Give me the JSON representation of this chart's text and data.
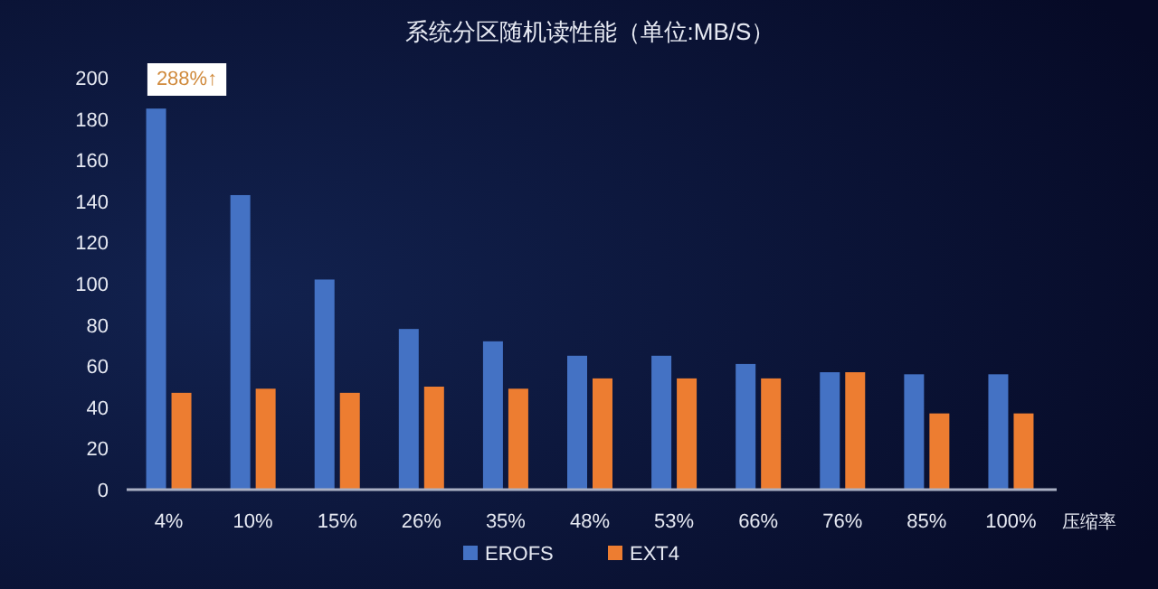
{
  "chart_data": {
    "type": "bar",
    "title": "系统分区随机读性能（单位:MB/S）",
    "xlabel": "压缩率",
    "categories": [
      "4%",
      "10%",
      "15%",
      "26%",
      "35%",
      "48%",
      "53%",
      "66%",
      "76%",
      "85%",
      "100%"
    ],
    "series": [
      {
        "name": "EROFS",
        "color": "#4472c4",
        "values": [
          185,
          143,
          102,
          78,
          72,
          65,
          65,
          61,
          57,
          56,
          56
        ]
      },
      {
        "name": "EXT4",
        "color": "#ed7d31",
        "values": [
          47,
          49,
          47,
          50,
          49,
          54,
          54,
          54,
          57,
          37,
          37
        ]
      }
    ],
    "ylim": [
      0,
      200
    ],
    "yticks": [
      0,
      20,
      40,
      60,
      80,
      100,
      120,
      140,
      160,
      180,
      200
    ],
    "grid": false,
    "legend": "bottom",
    "annotations": [
      "288%↑"
    ]
  }
}
